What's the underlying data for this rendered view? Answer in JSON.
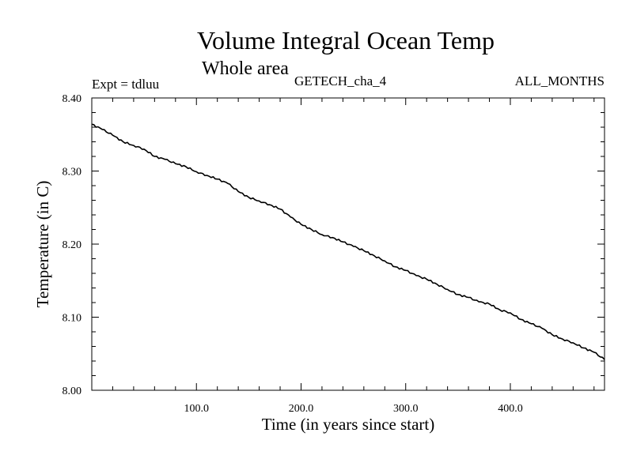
{
  "chart_data": {
    "type": "line",
    "title": "Volume Integral Ocean Temp",
    "subtitle": "Whole area",
    "annotations": {
      "experiment": "Expt = tdluu",
      "model": "GETECH_cha_4",
      "months": "ALL_MONTHS"
    },
    "xlabel": "Time (in years since start)",
    "ylabel": "Temperature (in C)",
    "xlim": [
      0,
      490
    ],
    "ylim": [
      8.0,
      8.4
    ],
    "xticks": [
      100,
      200,
      300,
      400
    ],
    "xtick_labels": [
      "100.0",
      "200.0",
      "300.0",
      "400.0"
    ],
    "yticks": [
      8.0,
      8.1,
      8.2,
      8.3,
      8.4
    ],
    "ytick_labels": [
      "8.00",
      "8.10",
      "8.20",
      "8.30",
      "8.40"
    ],
    "grid": false,
    "series": [
      {
        "color": "#000000",
        "x": [
          0,
          10,
          20,
          30,
          40,
          50,
          60,
          70,
          80,
          90,
          100,
          110,
          120,
          130,
          140,
          150,
          160,
          170,
          180,
          190,
          200,
          210,
          220,
          230,
          240,
          250,
          260,
          270,
          280,
          290,
          300,
          310,
          320,
          330,
          340,
          350,
          360,
          370,
          380,
          390,
          400,
          410,
          420,
          430,
          440,
          450,
          460,
          470,
          480,
          490
        ],
        "y": [
          8.364,
          8.357,
          8.349,
          8.34,
          8.335,
          8.33,
          8.32,
          8.316,
          8.31,
          8.306,
          8.299,
          8.294,
          8.289,
          8.283,
          8.272,
          8.264,
          8.259,
          8.254,
          8.248,
          8.237,
          8.227,
          8.22,
          8.213,
          8.209,
          8.203,
          8.197,
          8.191,
          8.184,
          8.177,
          8.169,
          8.164,
          8.157,
          8.152,
          8.145,
          8.138,
          8.131,
          8.127,
          8.121,
          8.118,
          8.11,
          8.106,
          8.097,
          8.091,
          8.085,
          8.076,
          8.07,
          8.065,
          8.058,
          8.052,
          8.042
        ]
      }
    ]
  }
}
